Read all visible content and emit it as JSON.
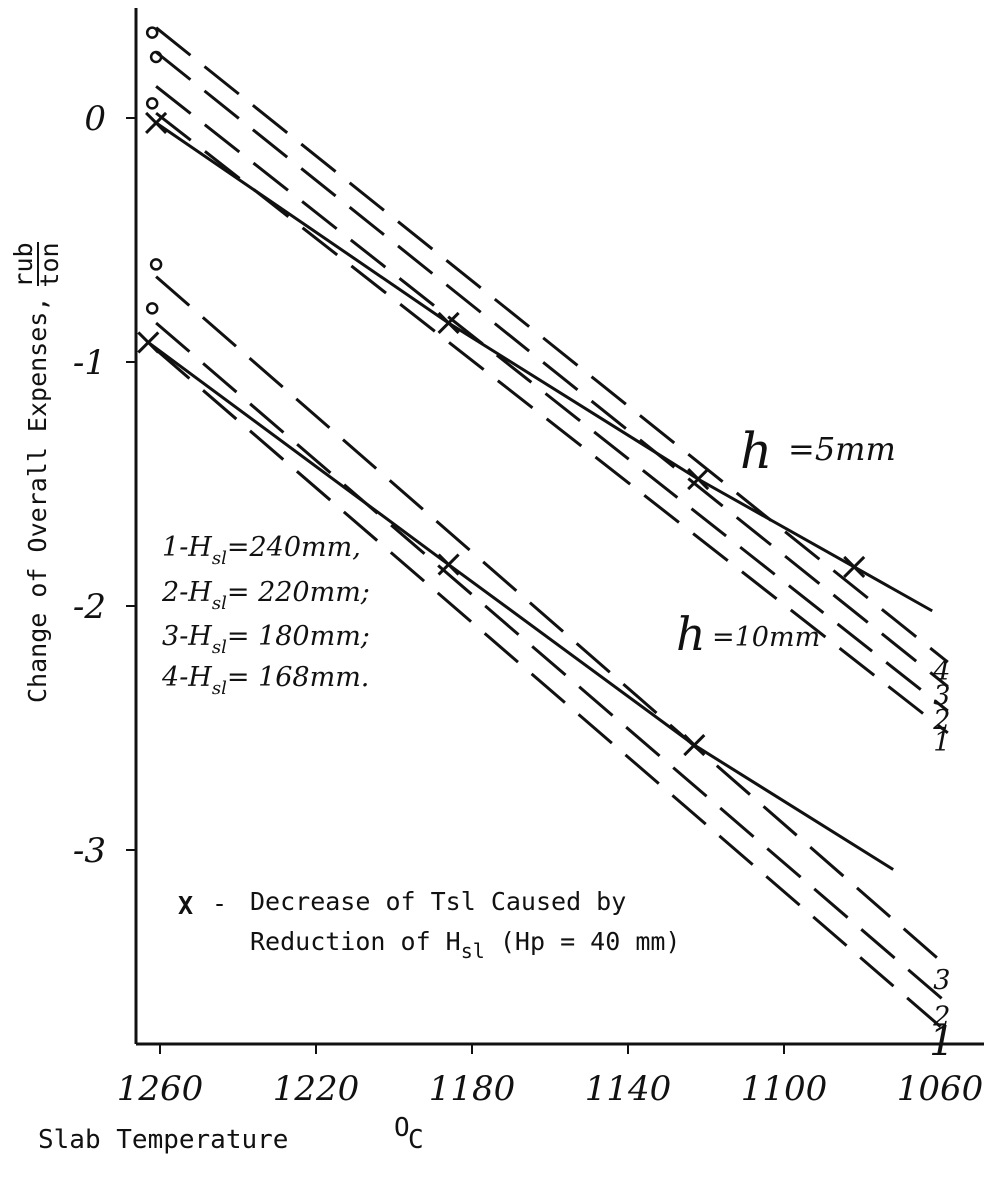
{
  "chart_data": {
    "type": "line",
    "xlabel": "Slab Temperature",
    "xlabel_unit": "O",
    "xlabel_unit_suffix": "C",
    "ylabel": "Change of Overall Expenses,",
    "ylabel_unit_num": "rub",
    "ylabel_unit_den": "ton",
    "x_ticks": [
      1260,
      1220,
      1180,
      1140,
      1100,
      1060
    ],
    "y_ticks": [
      0,
      -1,
      -2,
      -3
    ],
    "x_ticks_labels": [
      "1260",
      "1220",
      "1180",
      "1140",
      "1100",
      "1060"
    ],
    "y_ticks_labels": [
      "0",
      "-1",
      "-2",
      "-3"
    ],
    "xlim": [
      1266,
      1056
    ],
    "ylim": [
      -3.77,
      0.45
    ],
    "x_reversed": true,
    "groups": [
      {
        "label": "h =5mm",
        "label_h": "h",
        "label_rest": "=5mm",
        "solid_line": [
          [
            1261,
            -0.02
          ],
          [
            1186,
            -0.84
          ],
          [
            1122,
            -1.48
          ],
          [
            1082,
            -1.84
          ],
          [
            1062,
            -2.02
          ]
        ],
        "markers_x": [
          [
            1261,
            -0.02
          ],
          [
            1186,
            -0.84
          ],
          [
            1122,
            -1.48
          ],
          [
            1082,
            -1.84
          ]
        ],
        "markers_o": [
          [
            1262,
            0.35
          ],
          [
            1261,
            0.25
          ],
          [
            1262,
            0.06
          ]
        ],
        "dashed": [
          {
            "name": "1",
            "label": "1",
            "start": [
              1261,
              0.02
            ],
            "end": [
              1058,
              -2.52
            ]
          },
          {
            "name": "2",
            "label": "2",
            "start": [
              1261,
              0.13
            ],
            "end": [
              1058,
              -2.43
            ]
          },
          {
            "name": "3",
            "label": "3",
            "start": [
              1261,
              0.27
            ],
            "end": [
              1058,
              -2.33
            ]
          },
          {
            "name": "4",
            "label": "4",
            "start": [
              1261,
              0.37
            ],
            "end": [
              1058,
              -2.23
            ]
          }
        ]
      },
      {
        "label": "h =10mm",
        "label_h": "h",
        "label_rest": "=10mm",
        "solid_line": [
          [
            1263,
            -0.92
          ],
          [
            1186,
            -1.83
          ],
          [
            1123,
            -2.57
          ],
          [
            1072,
            -3.08
          ]
        ],
        "markers_x": [
          [
            1263,
            -0.92
          ],
          [
            1186,
            -1.83
          ],
          [
            1123,
            -2.57
          ]
        ],
        "markers_o": [
          [
            1261,
            -0.6
          ],
          [
            1262,
            -0.78
          ]
        ],
        "dashed": [
          {
            "name": "1",
            "label": "1",
            "start": [
              1261,
              -0.95
            ],
            "end": [
              1058,
              -3.75
            ]
          },
          {
            "name": "2",
            "label": "2",
            "start": [
              1261,
              -0.84
            ],
            "end": [
              1058,
              -3.63
            ]
          },
          {
            "name": "3",
            "label": "3",
            "start": [
              1261,
              -0.65
            ],
            "end": [
              1058,
              -3.48
            ]
          }
        ]
      }
    ],
    "legend": [
      {
        "num": "1",
        "text": "-H",
        "sub": "sl",
        "value": "=240mm,"
      },
      {
        "num": "2",
        "text": "-H",
        "sub": "sl",
        "value": "= 220mm;"
      },
      {
        "num": "3",
        "text": "-H",
        "sub": "sl",
        "value": "= 180mm;"
      },
      {
        "num": "4",
        "text": "-H",
        "sub": "sl",
        "value": "= 168mm."
      }
    ],
    "note": {
      "marker": "X",
      "dash": "-",
      "line1": "Decrease of Tsl Caused by",
      "line2_prefix": "Reduction of H",
      "line2_sub": "sl",
      "line2_suffix": " (Hp = 40 mm)"
    }
  }
}
